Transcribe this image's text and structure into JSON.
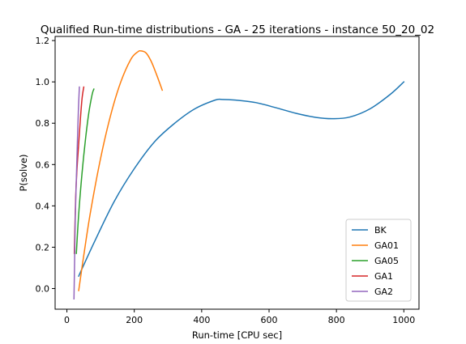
{
  "chart_data": {
    "type": "line",
    "title": "Qualified Run-time distributions - GA - 25 iterations - instance 50_20_02",
    "xlabel": "Run-time [CPU sec]",
    "ylabel": "P(solve)",
    "xlim": [
      -35,
      1045
    ],
    "ylim": [
      -0.1,
      1.22
    ],
    "xticks": [
      0,
      200,
      400,
      600,
      800,
      1000
    ],
    "yticks": [
      0.0,
      0.2,
      0.4,
      0.6,
      0.8,
      1.0,
      1.2
    ],
    "xtick_labels": [
      "0",
      "200",
      "400",
      "600",
      "800",
      "1000"
    ],
    "ytick_labels": [
      "0.0",
      "0.2",
      "0.4",
      "0.6",
      "0.8",
      "1.0",
      "1.2"
    ],
    "grid": false,
    "legend_position": "lower-right",
    "series": [
      {
        "name": "BK",
        "color": "#1f77b4",
        "x": [
          35,
          80,
          140,
          200,
          260,
          320,
          380,
          440,
          460,
          500,
          560,
          620,
          680,
          740,
          790,
          840,
          900,
          960,
          1000
        ],
        "y": [
          0.06,
          0.22,
          0.42,
          0.58,
          0.71,
          0.8,
          0.87,
          0.912,
          0.915,
          0.912,
          0.9,
          0.875,
          0.848,
          0.828,
          0.822,
          0.83,
          0.87,
          0.94,
          1.0
        ]
      },
      {
        "name": "GA01",
        "color": "#ff7f0e",
        "x": [
          35,
          50,
          70,
          100,
          130,
          160,
          190,
          210,
          220,
          235,
          250,
          265,
          283
        ],
        "y": [
          -0.01,
          0.16,
          0.37,
          0.63,
          0.84,
          1.0,
          1.11,
          1.145,
          1.15,
          1.14,
          1.1,
          1.04,
          0.96
        ]
      },
      {
        "name": "GA05",
        "color": "#2ca02c",
        "x": [
          28,
          35,
          45,
          55,
          65,
          75,
          80
        ],
        "y": [
          0.17,
          0.36,
          0.56,
          0.72,
          0.85,
          0.94,
          0.965
        ]
      },
      {
        "name": "GA1",
        "color": "#d62728",
        "x": [
          22,
          26,
          30,
          35,
          40,
          45,
          50
        ],
        "y": [
          0.17,
          0.44,
          0.58,
          0.7,
          0.82,
          0.92,
          0.975
        ]
      },
      {
        "name": "GA2",
        "color": "#9467bd",
        "x": [
          21,
          23,
          25,
          28,
          31,
          34,
          37
        ],
        "y": [
          -0.05,
          0.15,
          0.35,
          0.53,
          0.7,
          0.86,
          0.975
        ]
      }
    ]
  }
}
